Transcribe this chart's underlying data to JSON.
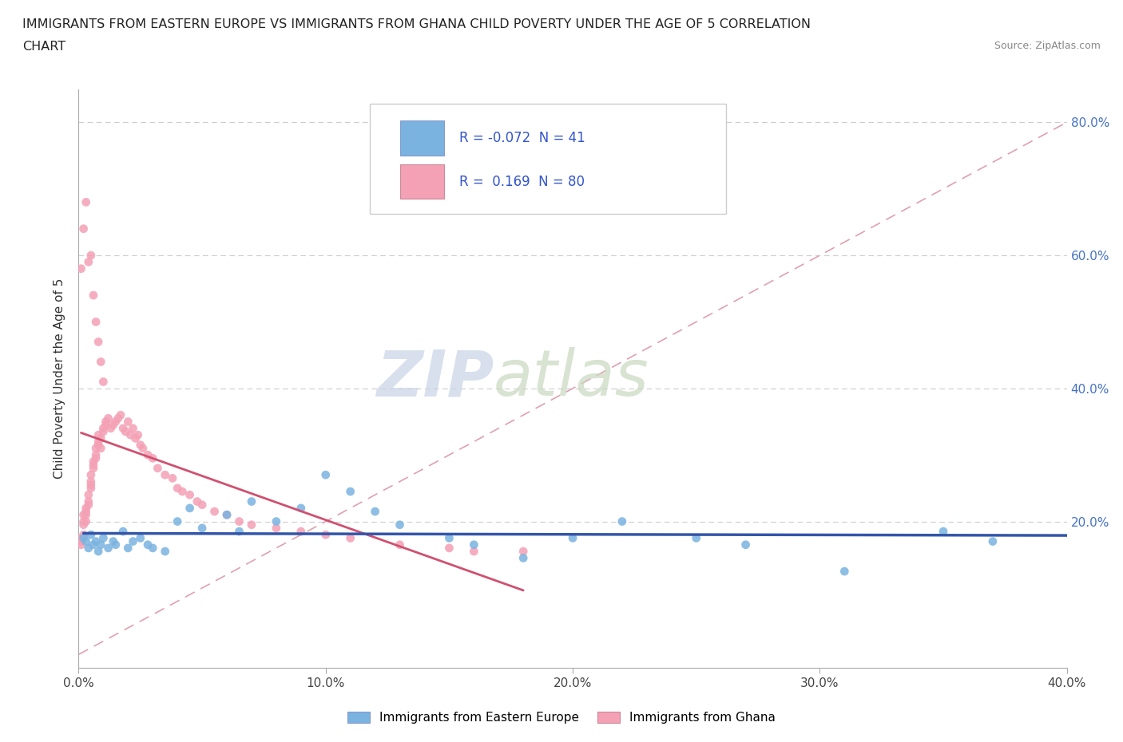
{
  "title_line1": "IMMIGRANTS FROM EASTERN EUROPE VS IMMIGRANTS FROM GHANA CHILD POVERTY UNDER THE AGE OF 5 CORRELATION",
  "title_line2": "CHART",
  "source": "Source: ZipAtlas.com",
  "ylabel": "Child Poverty Under the Age of 5",
  "xlim": [
    0.0,
    0.4
  ],
  "ylim": [
    -0.02,
    0.85
  ],
  "xtick_labels": [
    "0.0%",
    "10.0%",
    "20.0%",
    "30.0%",
    "40.0%"
  ],
  "xtick_vals": [
    0.0,
    0.1,
    0.2,
    0.3,
    0.4
  ],
  "ytick_labels": [
    "20.0%",
    "40.0%",
    "60.0%",
    "80.0%"
  ],
  "ytick_vals": [
    0.2,
    0.4,
    0.6,
    0.8
  ],
  "legend_label1": "Immigrants from Eastern Europe",
  "legend_label2": "Immigrants from Ghana",
  "R1": -0.072,
  "N1": 41,
  "R2": 0.169,
  "N2": 80,
  "color_eastern": "#7ab3e0",
  "color_ghana": "#f4a0b5",
  "trendline_eastern": "#3355aa",
  "trendline_ghana": "#d05070",
  "trendline_dashed_color": "#e0a0b0",
  "watermark_zip": "ZIP",
  "watermark_atlas": "atlas",
  "watermark_color_zip": "#c8d4e8",
  "watermark_color_atlas": "#c8d8c0",
  "eastern_x": [
    0.002,
    0.003,
    0.004,
    0.005,
    0.006,
    0.007,
    0.008,
    0.009,
    0.01,
    0.012,
    0.014,
    0.015,
    0.018,
    0.02,
    0.022,
    0.025,
    0.028,
    0.03,
    0.035,
    0.04,
    0.045,
    0.05,
    0.06,
    0.065,
    0.07,
    0.08,
    0.09,
    0.1,
    0.11,
    0.12,
    0.13,
    0.15,
    0.16,
    0.18,
    0.2,
    0.22,
    0.25,
    0.27,
    0.31,
    0.35,
    0.37
  ],
  "eastern_y": [
    0.175,
    0.17,
    0.16,
    0.18,
    0.165,
    0.17,
    0.155,
    0.165,
    0.175,
    0.16,
    0.17,
    0.165,
    0.185,
    0.16,
    0.17,
    0.175,
    0.165,
    0.16,
    0.155,
    0.2,
    0.22,
    0.19,
    0.21,
    0.185,
    0.23,
    0.2,
    0.22,
    0.27,
    0.245,
    0.215,
    0.195,
    0.175,
    0.165,
    0.145,
    0.175,
    0.2,
    0.175,
    0.165,
    0.125,
    0.185,
    0.17
  ],
  "ghana_x": [
    0.001,
    0.001,
    0.001,
    0.002,
    0.002,
    0.002,
    0.002,
    0.003,
    0.003,
    0.003,
    0.003,
    0.004,
    0.004,
    0.004,
    0.005,
    0.005,
    0.005,
    0.005,
    0.006,
    0.006,
    0.006,
    0.007,
    0.007,
    0.007,
    0.008,
    0.008,
    0.008,
    0.009,
    0.009,
    0.01,
    0.01,
    0.011,
    0.011,
    0.012,
    0.013,
    0.014,
    0.015,
    0.016,
    0.017,
    0.018,
    0.019,
    0.02,
    0.021,
    0.022,
    0.023,
    0.024,
    0.025,
    0.026,
    0.028,
    0.03,
    0.032,
    0.035,
    0.038,
    0.04,
    0.042,
    0.045,
    0.048,
    0.05,
    0.055,
    0.06,
    0.065,
    0.07,
    0.08,
    0.09,
    0.1,
    0.11,
    0.13,
    0.15,
    0.16,
    0.18,
    0.001,
    0.002,
    0.003,
    0.004,
    0.005,
    0.006,
    0.007,
    0.008,
    0.009,
    0.01
  ],
  "ghana_y": [
    0.175,
    0.17,
    0.165,
    0.21,
    0.2,
    0.195,
    0.18,
    0.22,
    0.21,
    0.2,
    0.215,
    0.23,
    0.225,
    0.24,
    0.255,
    0.26,
    0.27,
    0.25,
    0.28,
    0.29,
    0.285,
    0.3,
    0.31,
    0.295,
    0.32,
    0.33,
    0.315,
    0.31,
    0.325,
    0.34,
    0.335,
    0.345,
    0.35,
    0.355,
    0.34,
    0.345,
    0.35,
    0.355,
    0.36,
    0.34,
    0.335,
    0.35,
    0.33,
    0.34,
    0.325,
    0.33,
    0.315,
    0.31,
    0.3,
    0.295,
    0.28,
    0.27,
    0.265,
    0.25,
    0.245,
    0.24,
    0.23,
    0.225,
    0.215,
    0.21,
    0.2,
    0.195,
    0.19,
    0.185,
    0.18,
    0.175,
    0.165,
    0.16,
    0.155,
    0.155,
    0.58,
    0.64,
    0.68,
    0.59,
    0.6,
    0.54,
    0.5,
    0.47,
    0.44,
    0.41
  ]
}
